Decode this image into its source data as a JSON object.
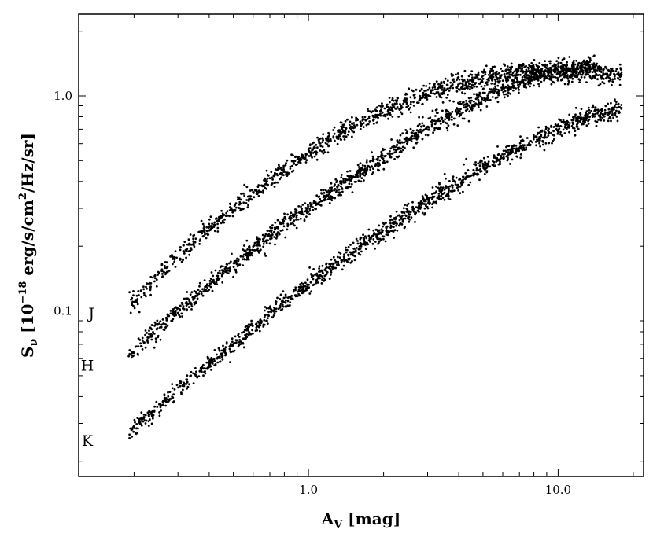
{
  "chart_data": {
    "type": "scatter",
    "title": "",
    "x_scale": "log",
    "y_scale": "log",
    "xlim": [
      0.12,
      22
    ],
    "ylim": [
      0.017,
      2.4
    ],
    "grid": false,
    "x_ticks": [
      {
        "value": 1.0,
        "label": "1.0"
      },
      {
        "value": 10.0,
        "label": "10.0"
      }
    ],
    "y_ticks": [
      {
        "value": 0.1,
        "label": "0.1"
      },
      {
        "value": 1.0,
        "label": "1.0"
      }
    ],
    "xlabel": {
      "main": "A",
      "sub": "V",
      "rest": " [mag]"
    },
    "ylabel": {
      "main": "S",
      "sub": "ν",
      "pre": " [10",
      "exp1": "−18",
      "mid": " erg/s/cm",
      "exp2": "2",
      "post": "/Hz/sr]"
    },
    "series": [
      {
        "name": "J",
        "label_at": {
          "x": 0.135,
          "y": 0.098
        },
        "color": "#000000",
        "x_range": [
          0.19,
          18
        ],
        "scatter_frac": 0.05,
        "curve": [
          [
            0.19,
            0.105
          ],
          [
            0.3,
            0.18
          ],
          [
            0.5,
            0.3
          ],
          [
            0.8,
            0.45
          ],
          [
            1.2,
            0.62
          ],
          [
            2.0,
            0.85
          ],
          [
            3.0,
            1.03
          ],
          [
            5.0,
            1.22
          ],
          [
            8.0,
            1.3
          ],
          [
            12.0,
            1.3
          ],
          [
            18.0,
            1.25
          ]
        ]
      },
      {
        "name": "H",
        "label_at": {
          "x": 0.13,
          "y": 0.056
        },
        "color": "#000000",
        "x_range": [
          0.19,
          14
        ],
        "scatter_frac": 0.05,
        "curve": [
          [
            0.19,
            0.063
          ],
          [
            0.3,
            0.1
          ],
          [
            0.5,
            0.165
          ],
          [
            0.8,
            0.25
          ],
          [
            1.2,
            0.35
          ],
          [
            2.0,
            0.52
          ],
          [
            3.0,
            0.72
          ],
          [
            5.0,
            0.98
          ],
          [
            8.0,
            1.22
          ],
          [
            12.0,
            1.35
          ],
          [
            14.0,
            1.38
          ]
        ]
      },
      {
        "name": "K",
        "label_at": {
          "x": 0.13,
          "y": 0.025
        },
        "color": "#000000",
        "x_range": [
          0.19,
          18
        ],
        "scatter_frac": 0.05,
        "curve": [
          [
            0.19,
            0.027
          ],
          [
            0.3,
            0.043
          ],
          [
            0.5,
            0.07
          ],
          [
            0.8,
            0.11
          ],
          [
            1.2,
            0.155
          ],
          [
            2.0,
            0.235
          ],
          [
            3.0,
            0.32
          ],
          [
            5.0,
            0.47
          ],
          [
            8.0,
            0.62
          ],
          [
            12.0,
            0.78
          ],
          [
            18.0,
            0.87
          ]
        ]
      }
    ]
  }
}
